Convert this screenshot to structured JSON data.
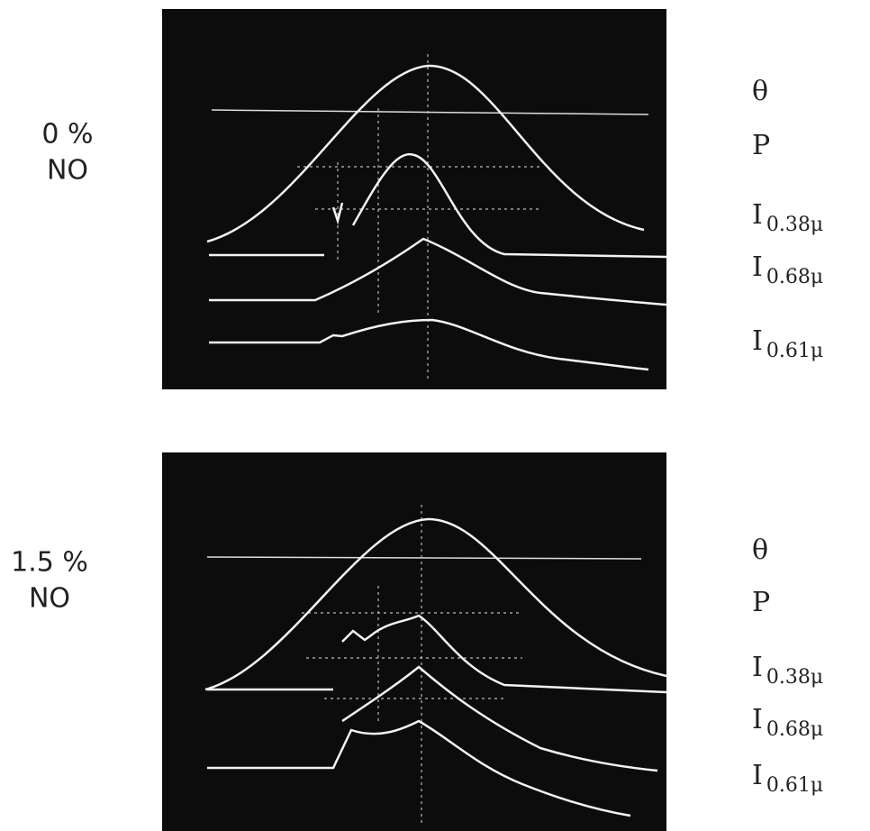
{
  "panels": [
    {
      "condition": [
        "0 %",
        "NO"
      ],
      "traces": [
        {
          "symbol": "θ"
        },
        {
          "symbol": "P"
        },
        {
          "symbol": "I",
          "subscript": "0.38μ"
        },
        {
          "symbol": "I",
          "subscript": "0.68μ"
        },
        {
          "symbol": "I",
          "subscript": "0.61μ"
        }
      ]
    },
    {
      "condition": [
        "1.5 %",
        "NO"
      ],
      "traces": [
        {
          "symbol": "θ"
        },
        {
          "symbol": "P"
        },
        {
          "symbol": "I",
          "subscript": "0.38μ"
        },
        {
          "symbol": "I",
          "subscript": "0.68μ"
        },
        {
          "symbol": "I",
          "subscript": "0.61μ"
        }
      ]
    }
  ]
}
